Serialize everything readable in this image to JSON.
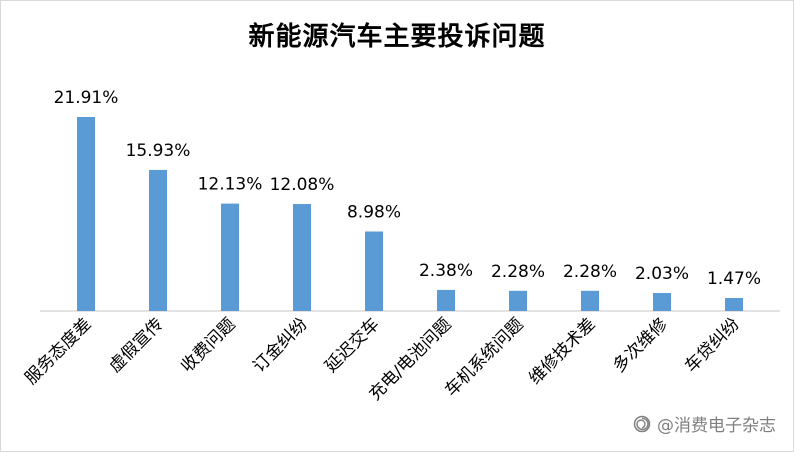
{
  "title": "新能源汽车主要投诉问题",
  "watermark": "@消费电子杂志",
  "colors": {
    "bar": "#5B9BD5",
    "axis": "#d9d9d9",
    "label": "#000000",
    "watermark": "#7f7f7f"
  },
  "chart_data": {
    "type": "bar",
    "title": "新能源汽车主要投诉问题",
    "categories": [
      "服务态度差",
      "虚假宣传",
      "收费问题",
      "订金纠纷",
      "延迟交车",
      "充电/电池问题",
      "车机系统问题",
      "维修技术差",
      "多次维修",
      "车贷纠纷"
    ],
    "values": [
      21.91,
      15.93,
      12.13,
      12.08,
      8.98,
      2.38,
      2.28,
      2.28,
      2.03,
      1.47
    ],
    "data_labels": [
      "21.91%",
      "15.93%",
      "12.13%",
      "12.08%",
      "8.98%",
      "2.38%",
      "2.28%",
      "2.28%",
      "2.03%",
      "1.47%"
    ],
    "xlabel": "",
    "ylabel": "",
    "ylim": [
      0,
      25
    ],
    "grid": false,
    "legend": "none"
  }
}
